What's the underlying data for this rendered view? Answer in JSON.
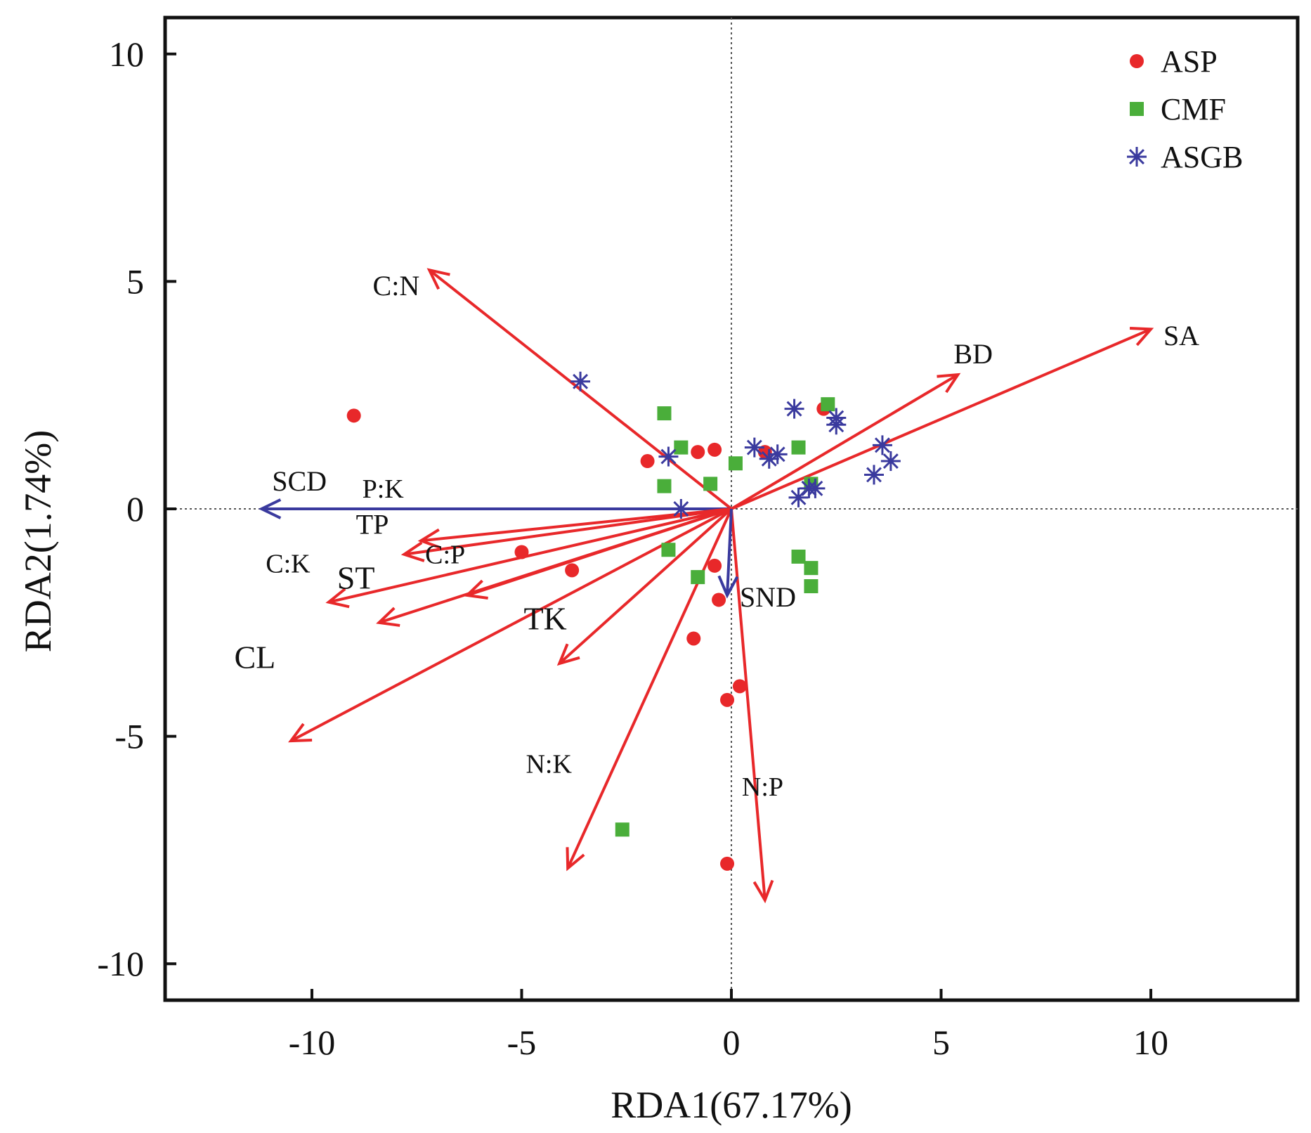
{
  "chart_data": {
    "type": "scatter",
    "title": "",
    "xlabel": "RDA1(67.17%)",
    "ylabel": "RDA2(1.74%)",
    "xlim": [
      -13.5,
      13.5
    ],
    "ylim": [
      -10.8,
      10.8
    ],
    "xticks": [
      -10,
      -5,
      0,
      5,
      10
    ],
    "xtick_labels": [
      "-10",
      "-5",
      "0",
      "5",
      "10"
    ],
    "yticks": [
      10,
      5,
      0,
      -5,
      -10
    ],
    "ytick_labels": [
      "10",
      "5",
      "0",
      "-5",
      "-10"
    ],
    "grid": false,
    "zero_lines": true,
    "legend": "top-right",
    "colors": {
      "ASP": "#e8282a",
      "CMF": "#4aae3a",
      "ASGB": "#3a3a9e",
      "arrow_red": "#e8282a",
      "arrow_blue": "#3a3a9e"
    },
    "series": [
      {
        "name": "ASP",
        "marker": "circle",
        "color": "#e8282a",
        "points": [
          [
            -9.0,
            2.05
          ],
          [
            -2.0,
            1.05
          ],
          [
            -0.8,
            1.25
          ],
          [
            -0.4,
            1.3
          ],
          [
            0.8,
            1.25
          ],
          [
            2.2,
            2.2
          ],
          [
            -5.0,
            -0.95
          ],
          [
            -3.8,
            -1.35
          ],
          [
            -0.4,
            -1.25
          ],
          [
            -0.3,
            -2.0
          ],
          [
            -0.9,
            -2.85
          ],
          [
            -0.1,
            -4.2
          ],
          [
            0.2,
            -3.9
          ],
          [
            -0.1,
            -7.8
          ]
        ]
      },
      {
        "name": "CMF",
        "marker": "square",
        "color": "#4aae3a",
        "points": [
          [
            -1.6,
            2.1
          ],
          [
            -1.2,
            1.35
          ],
          [
            -1.6,
            0.5
          ],
          [
            -0.5,
            0.55
          ],
          [
            0.1,
            1.0
          ],
          [
            1.6,
            1.35
          ],
          [
            2.3,
            2.3
          ],
          [
            1.9,
            0.55
          ],
          [
            -1.5,
            -0.9
          ],
          [
            -0.8,
            -1.5
          ],
          [
            1.6,
            -1.05
          ],
          [
            1.9,
            -1.3
          ],
          [
            1.9,
            -1.7
          ],
          [
            -2.6,
            -7.05
          ]
        ]
      },
      {
        "name": "ASGB",
        "marker": "asterisk",
        "color": "#3a3a9e",
        "points": [
          [
            -3.6,
            2.8
          ],
          [
            -1.5,
            1.15
          ],
          [
            -1.2,
            0.0
          ],
          [
            0.55,
            1.35
          ],
          [
            0.9,
            1.1
          ],
          [
            1.1,
            1.2
          ],
          [
            1.5,
            2.2
          ],
          [
            1.6,
            0.25
          ],
          [
            1.85,
            0.45
          ],
          [
            2.0,
            0.45
          ],
          [
            2.5,
            1.85
          ],
          [
            2.5,
            2.0
          ],
          [
            3.4,
            0.75
          ],
          [
            3.6,
            1.4
          ],
          [
            3.8,
            1.05
          ]
        ]
      }
    ],
    "vectors": [
      {
        "label": "C:N",
        "x": -7.2,
        "y": 5.25,
        "color": "#e8282a"
      },
      {
        "label": "SA",
        "x": 10.0,
        "y": 3.95,
        "color": "#e8282a"
      },
      {
        "label": "BD",
        "x": 5.4,
        "y": 2.95,
        "color": "#e8282a"
      },
      {
        "label": "SCD",
        "x": -11.2,
        "y": 0.0,
        "color": "#3a3a9e"
      },
      {
        "label": "P:K",
        "x": -7.4,
        "y": -0.7,
        "color": "#e8282a"
      },
      {
        "label": "TP",
        "x": -7.8,
        "y": -1.0,
        "color": "#e8282a"
      },
      {
        "label": "C:P",
        "x": -6.3,
        "y": -1.9,
        "color": "#e8282a"
      },
      {
        "label": "C:K",
        "x": -9.6,
        "y": -2.05,
        "color": "#e8282a"
      },
      {
        "label": "ST",
        "x": -8.4,
        "y": -2.5,
        "color": "#e8282a"
      },
      {
        "label": "TK",
        "x": -4.1,
        "y": -3.4,
        "color": "#e8282a"
      },
      {
        "label": "CL",
        "x": -10.5,
        "y": -5.1,
        "color": "#e8282a"
      },
      {
        "label": "N:K",
        "x": -3.9,
        "y": -7.9,
        "color": "#e8282a"
      },
      {
        "label": "N:P",
        "x": 0.8,
        "y": -8.6,
        "color": "#e8282a"
      },
      {
        "label": "SND",
        "x": -0.1,
        "y": -1.9,
        "color": "#3a3a9e"
      }
    ],
    "vector_labels": [
      {
        "text": "C:N",
        "x": -8.55,
        "y": 4.7,
        "size": 40
      },
      {
        "text": "SA",
        "x": 10.3,
        "y": 3.6,
        "size": 40
      },
      {
        "text": "BD",
        "x": 5.3,
        "y": 3.2,
        "size": 40
      },
      {
        "text": "SCD",
        "x": -10.95,
        "y": 0.4,
        "size": 40
      },
      {
        "text": "P:K",
        "x": -8.8,
        "y": 0.25,
        "size": 38
      },
      {
        "text": "TP",
        "x": -8.95,
        "y": -0.55,
        "size": 40
      },
      {
        "text": "C:P",
        "x": -7.3,
        "y": -1.2,
        "size": 38
      },
      {
        "text": "C:K",
        "x": -11.1,
        "y": -1.4,
        "size": 38
      },
      {
        "text": "ST",
        "x": -9.4,
        "y": -1.75,
        "size": 46
      },
      {
        "text": "TK",
        "x": -4.95,
        "y": -2.65,
        "size": 46
      },
      {
        "text": "CL",
        "x": -11.85,
        "y": -3.5,
        "size": 46
      },
      {
        "text": "N:K",
        "x": -4.9,
        "y": -5.8,
        "size": 38
      },
      {
        "text": "N:P",
        "x": 0.25,
        "y": -6.3,
        "size": 38
      },
      {
        "text": "SND",
        "x": 0.2,
        "y": -2.15,
        "size": 40
      }
    ]
  }
}
